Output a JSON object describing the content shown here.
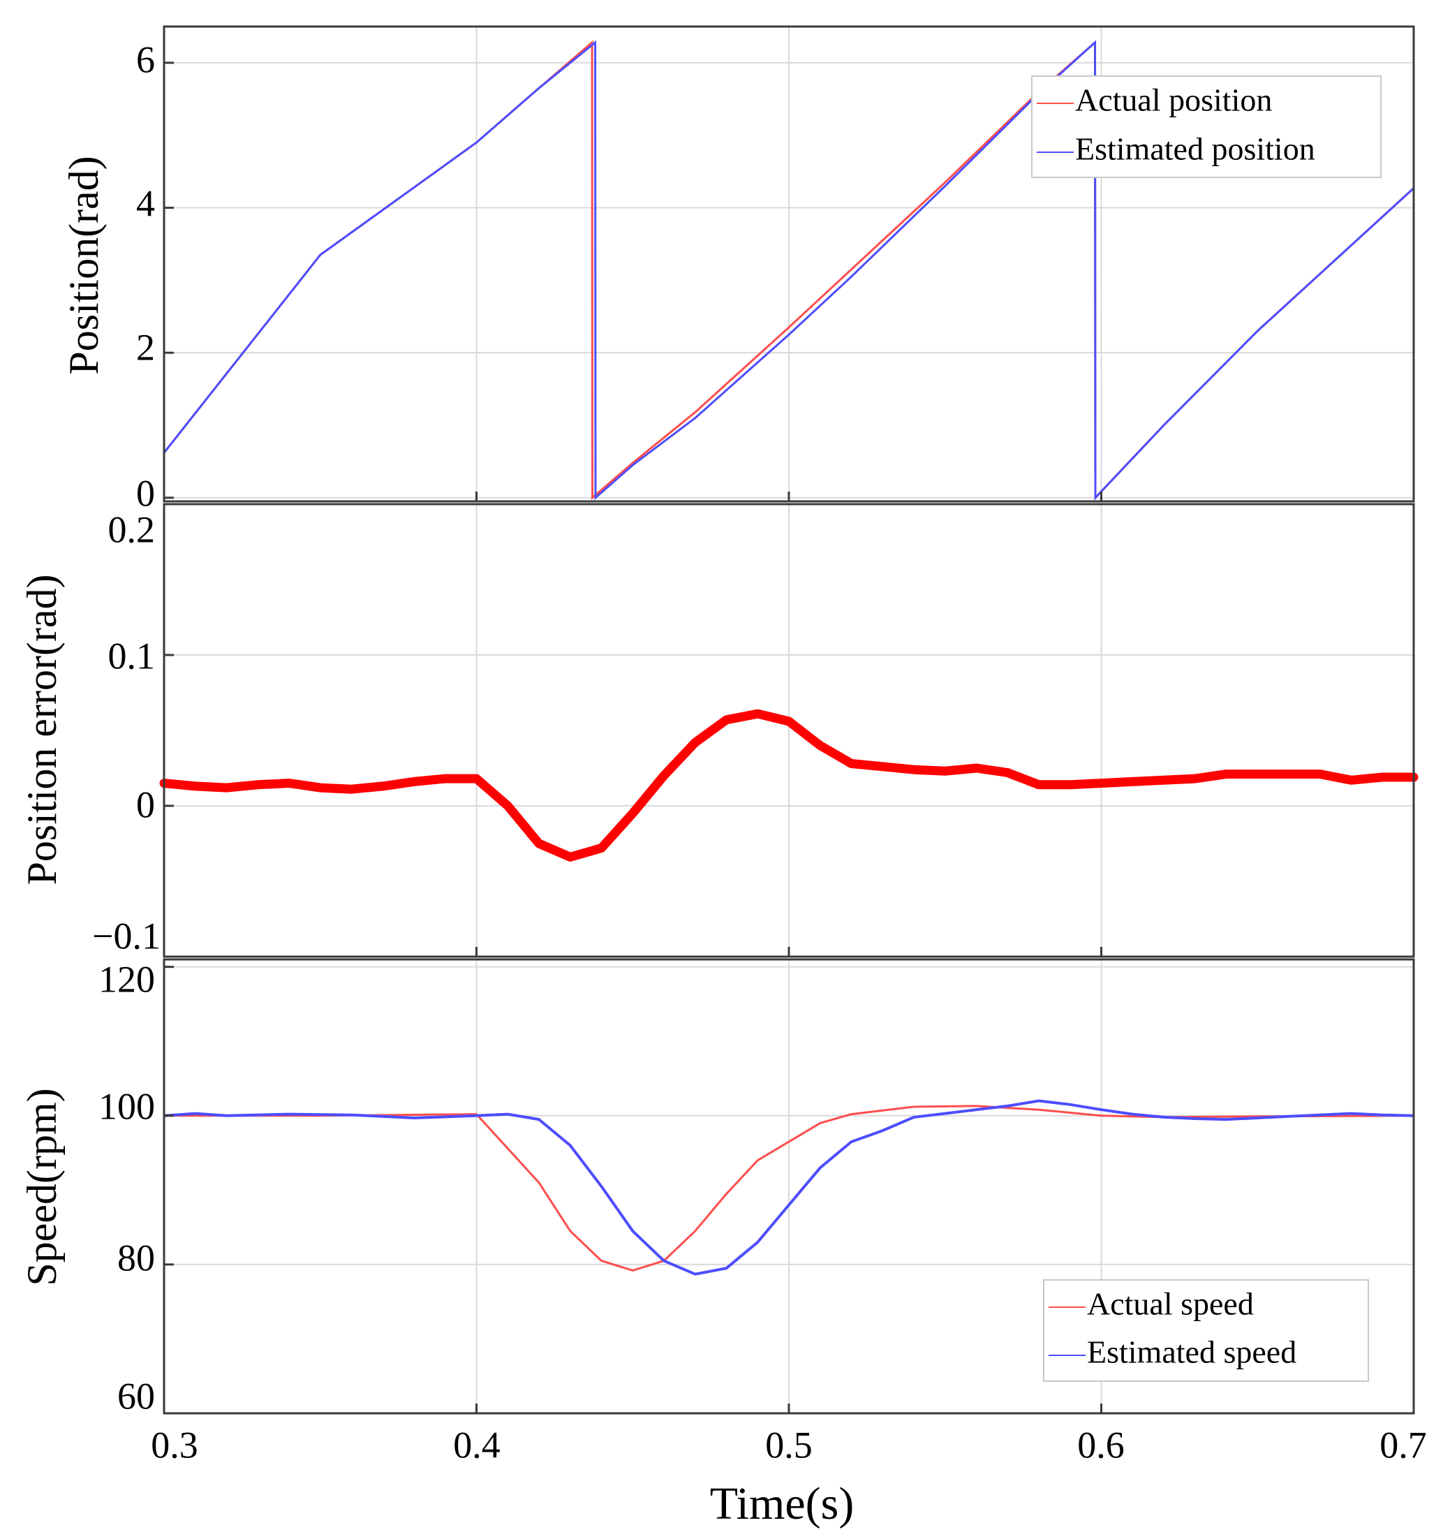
{
  "chart_data": [
    {
      "id": "position",
      "type": "line",
      "ylabel": "Position(rad)",
      "xlim": [
        0.3,
        0.7
      ],
      "ylim": [
        -0.05,
        6.5
      ],
      "xticks": [
        0.3,
        0.4,
        0.5,
        0.6,
        0.7
      ],
      "yticks": [
        0,
        2,
        4,
        6
      ],
      "ytick_labels": [
        "0",
        "2",
        "4",
        "6"
      ],
      "grid": true,
      "legend": "top-right",
      "series": [
        {
          "name": "Actual position",
          "color": "#ff4d4d",
          "points": [
            [
              0.3,
              0.62
            ],
            [
              0.35,
              3.35
            ],
            [
              0.4,
              4.9
            ],
            [
              0.42,
              5.65
            ],
            [
              0.437,
              6.28
            ],
            [
              0.4371,
              0.0
            ],
            [
              0.45,
              0.48
            ],
            [
              0.47,
              1.18
            ],
            [
              0.5,
              2.35
            ],
            [
              0.52,
              3.15
            ],
            [
              0.55,
              4.35
            ],
            [
              0.58,
              5.6
            ],
            [
              0.598,
              6.28
            ],
            [
              0.5981,
              0.0
            ],
            [
              0.62,
              1.0
            ],
            [
              0.65,
              2.3
            ],
            [
              0.7,
              4.27
            ]
          ]
        },
        {
          "name": "Estimated position",
          "color": "#4d4dff",
          "points": [
            [
              0.3,
              0.62
            ],
            [
              0.35,
              3.35
            ],
            [
              0.4,
              4.9
            ],
            [
              0.42,
              5.65
            ],
            [
              0.438,
              6.28
            ],
            [
              0.4381,
              0.0
            ],
            [
              0.45,
              0.45
            ],
            [
              0.47,
              1.1
            ],
            [
              0.5,
              2.25
            ],
            [
              0.52,
              3.05
            ],
            [
              0.55,
              4.3
            ],
            [
              0.58,
              5.58
            ],
            [
              0.598,
              6.28
            ],
            [
              0.5981,
              0.0
            ],
            [
              0.62,
              1.0
            ],
            [
              0.65,
              2.3
            ],
            [
              0.7,
              4.27
            ]
          ]
        }
      ]
    },
    {
      "id": "error",
      "type": "line",
      "ylabel": "Position error(rad)",
      "xlim": [
        0.3,
        0.7
      ],
      "ylim": [
        -0.1,
        0.2
      ],
      "xticks": [
        0.3,
        0.4,
        0.5,
        0.6,
        0.7
      ],
      "yticks": [
        -0.1,
        0,
        0.1,
        0.2
      ],
      "ytick_labels": [
        "−0.1",
        "0",
        "0.1",
        "0.2"
      ],
      "grid": true,
      "series": [
        {
          "name": "Position error",
          "color": "#ff0000",
          "points": [
            [
              0.3,
              0.015
            ],
            [
              0.31,
              0.013
            ],
            [
              0.32,
              0.012
            ],
            [
              0.33,
              0.014
            ],
            [
              0.34,
              0.015
            ],
            [
              0.35,
              0.012
            ],
            [
              0.36,
              0.011
            ],
            [
              0.37,
              0.013
            ],
            [
              0.38,
              0.016
            ],
            [
              0.39,
              0.018
            ],
            [
              0.4,
              0.018
            ],
            [
              0.41,
              0.0
            ],
            [
              0.42,
              -0.025
            ],
            [
              0.43,
              -0.034
            ],
            [
              0.44,
              -0.028
            ],
            [
              0.45,
              -0.005
            ],
            [
              0.46,
              0.02
            ],
            [
              0.47,
              0.042
            ],
            [
              0.48,
              0.057
            ],
            [
              0.49,
              0.061
            ],
            [
              0.5,
              0.056
            ],
            [
              0.51,
              0.04
            ],
            [
              0.52,
              0.028
            ],
            [
              0.53,
              0.026
            ],
            [
              0.54,
              0.024
            ],
            [
              0.55,
              0.023
            ],
            [
              0.56,
              0.025
            ],
            [
              0.57,
              0.022
            ],
            [
              0.58,
              0.014
            ],
            [
              0.59,
              0.014
            ],
            [
              0.6,
              0.015
            ],
            [
              0.61,
              0.016
            ],
            [
              0.62,
              0.017
            ],
            [
              0.63,
              0.018
            ],
            [
              0.64,
              0.021
            ],
            [
              0.65,
              0.021
            ],
            [
              0.66,
              0.021
            ],
            [
              0.67,
              0.021
            ],
            [
              0.68,
              0.017
            ],
            [
              0.69,
              0.019
            ],
            [
              0.7,
              0.019
            ]
          ]
        }
      ]
    },
    {
      "id": "speed",
      "type": "line",
      "ylabel": "Speed(rpm)",
      "xlabel": "Time(s)",
      "xlim": [
        0.3,
        0.7
      ],
      "ylim": [
        60,
        121
      ],
      "xticks": [
        0.3,
        0.4,
        0.5,
        0.6,
        0.7
      ],
      "xtick_labels": [
        "0.3",
        "0.4",
        "0.5",
        "0.6",
        "0.7"
      ],
      "yticks": [
        60,
        80,
        100,
        120
      ],
      "ytick_labels": [
        "60",
        "80",
        "100",
        "120"
      ],
      "grid": true,
      "legend": "bottom-right",
      "series": [
        {
          "name": "Actual speed",
          "color": "#ff4d4d",
          "points": [
            [
              0.3,
              100
            ],
            [
              0.35,
              100
            ],
            [
              0.4,
              100.2
            ],
            [
              0.42,
              91
            ],
            [
              0.43,
              84.5
            ],
            [
              0.44,
              80.5
            ],
            [
              0.45,
              79.2
            ],
            [
              0.46,
              80.5
            ],
            [
              0.47,
              84.5
            ],
            [
              0.48,
              89.5
            ],
            [
              0.49,
              94
            ],
            [
              0.5,
              96.5
            ],
            [
              0.51,
              99
            ],
            [
              0.52,
              100.2
            ],
            [
              0.54,
              101.2
            ],
            [
              0.56,
              101.3
            ],
            [
              0.58,
              100.8
            ],
            [
              0.6,
              100
            ],
            [
              0.62,
              99.8
            ],
            [
              0.65,
              99.9
            ],
            [
              0.7,
              100
            ]
          ]
        },
        {
          "name": "Estimated speed",
          "color": "#4d4dff",
          "points": [
            [
              0.3,
              100
            ],
            [
              0.31,
              100.3
            ],
            [
              0.32,
              100
            ],
            [
              0.34,
              100.2
            ],
            [
              0.36,
              100.1
            ],
            [
              0.38,
              99.7
            ],
            [
              0.4,
              100
            ],
            [
              0.41,
              100.2
            ],
            [
              0.42,
              99.5
            ],
            [
              0.43,
              96
            ],
            [
              0.44,
              90.5
            ],
            [
              0.45,
              84.5
            ],
            [
              0.46,
              80.5
            ],
            [
              0.47,
              78.7
            ],
            [
              0.48,
              79.5
            ],
            [
              0.49,
              83
            ],
            [
              0.5,
              88
            ],
            [
              0.51,
              93
            ],
            [
              0.52,
              96.5
            ],
            [
              0.53,
              98
            ],
            [
              0.54,
              99.8
            ],
            [
              0.55,
              100.3
            ],
            [
              0.56,
              100.8
            ],
            [
              0.57,
              101.3
            ],
            [
              0.58,
              102
            ],
            [
              0.59,
              101.5
            ],
            [
              0.6,
              100.8
            ],
            [
              0.61,
              100.2
            ],
            [
              0.62,
              99.8
            ],
            [
              0.63,
              99.6
            ],
            [
              0.64,
              99.5
            ],
            [
              0.66,
              99.9
            ],
            [
              0.68,
              100.3
            ],
            [
              0.69,
              100.1
            ],
            [
              0.7,
              100
            ]
          ]
        }
      ]
    }
  ]
}
